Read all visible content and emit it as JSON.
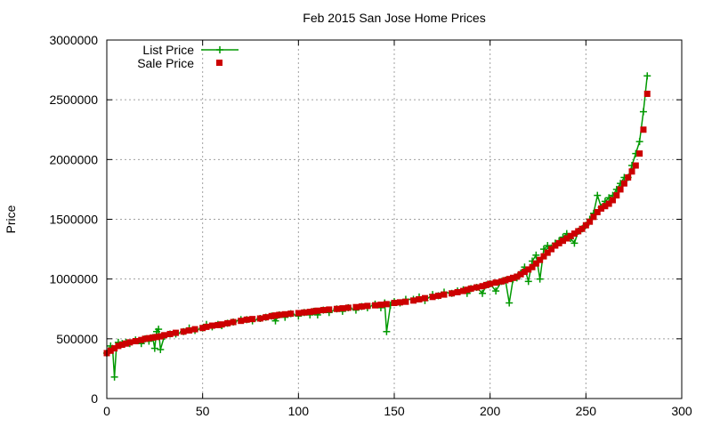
{
  "chart_data": {
    "type": "line",
    "title": "Feb 2015 San Jose Home Prices",
    "xlabel": "",
    "ylabel": "Price",
    "xlim": [
      0,
      300
    ],
    "ylim": [
      0,
      3000000
    ],
    "x_ticks": [
      0,
      50,
      100,
      150,
      200,
      250,
      300
    ],
    "y_ticks": [
      0,
      500000,
      1000000,
      1500000,
      2000000,
      2500000,
      3000000
    ],
    "grid": true,
    "legend_position": "top-left",
    "series": [
      {
        "name": "List Price",
        "style": "line-plus",
        "color": "#009900",
        "x": [
          0,
          1,
          2,
          3,
          4,
          5,
          6,
          7,
          8,
          10,
          12,
          15,
          18,
          20,
          22,
          24,
          25,
          26,
          27,
          28,
          30,
          33,
          36,
          40,
          43,
          46,
          50,
          52,
          55,
          58,
          60,
          63,
          66,
          70,
          73,
          76,
          80,
          83,
          86,
          88,
          90,
          93,
          96,
          100,
          103,
          106,
          108,
          110,
          113,
          116,
          120,
          123,
          126,
          130,
          133,
          136,
          140,
          143,
          145,
          146,
          148,
          150,
          153,
          156,
          160,
          163,
          166,
          170,
          173,
          176,
          180,
          183,
          186,
          188,
          190,
          193,
          196,
          198,
          200,
          203,
          206,
          208,
          210,
          212,
          214,
          216,
          218,
          220,
          222,
          224,
          226,
          228,
          230,
          232,
          234,
          236,
          238,
          240,
          242,
          244,
          246,
          248,
          250,
          252,
          254,
          256,
          258,
          260,
          262,
          264,
          266,
          268,
          270,
          272,
          274,
          276,
          278,
          280,
          282
        ],
        "values": [
          380000,
          400000,
          440000,
          420000,
          180000,
          430000,
          470000,
          450000,
          460000,
          470000,
          460000,
          490000,
          460000,
          500000,
          480000,
          510000,
          420000,
          560000,
          580000,
          410000,
          520000,
          540000,
          540000,
          560000,
          590000,
          570000,
          590000,
          620000,
          600000,
          620000,
          610000,
          630000,
          640000,
          660000,
          660000,
          650000,
          670000,
          680000,
          690000,
          650000,
          700000,
          680000,
          710000,
          690000,
          720000,
          700000,
          730000,
          700000,
          740000,
          720000,
          750000,
          730000,
          760000,
          740000,
          770000,
          760000,
          790000,
          760000,
          800000,
          560000,
          780000,
          810000,
          800000,
          830000,
          830000,
          850000,
          820000,
          870000,
          860000,
          890000,
          880000,
          900000,
          910000,
          880000,
          920000,
          930000,
          880000,
          950000,
          960000,
          900000,
          980000,
          990000,
          800000,
          1000000,
          1010000,
          1050000,
          1100000,
          980000,
          1150000,
          1200000,
          1000000,
          1250000,
          1280000,
          1260000,
          1300000,
          1320000,
          1350000,
          1380000,
          1340000,
          1300000,
          1400000,
          1420000,
          1450000,
          1500000,
          1550000,
          1700000,
          1600000,
          1650000,
          1680000,
          1700000,
          1750000,
          1800000,
          1850000,
          1850000,
          1950000,
          2050000,
          2150000,
          2400000,
          2700000
        ]
      },
      {
        "name": "Sale Price",
        "style": "points-square",
        "color": "#cc0000",
        "x": [
          0,
          2,
          4,
          6,
          8,
          10,
          12,
          15,
          18,
          20,
          22,
          24,
          26,
          28,
          30,
          33,
          36,
          40,
          43,
          46,
          50,
          52,
          55,
          58,
          60,
          63,
          66,
          70,
          73,
          76,
          80,
          83,
          86,
          88,
          90,
          93,
          96,
          100,
          103,
          106,
          108,
          110,
          113,
          116,
          120,
          123,
          126,
          130,
          133,
          136,
          140,
          143,
          146,
          150,
          153,
          156,
          160,
          163,
          166,
          170,
          173,
          176,
          180,
          183,
          186,
          188,
          190,
          193,
          196,
          198,
          200,
          203,
          206,
          208,
          210,
          212,
          214,
          216,
          218,
          220,
          222,
          224,
          226,
          228,
          230,
          232,
          234,
          236,
          238,
          240,
          242,
          244,
          246,
          248,
          250,
          252,
          254,
          256,
          258,
          260,
          262,
          264,
          266,
          268,
          270,
          272,
          274,
          276,
          278,
          280,
          282
        ],
        "values": [
          380000,
          400000,
          420000,
          440000,
          450000,
          460000,
          470000,
          480000,
          490000,
          500000,
          505000,
          510000,
          515000,
          520000,
          530000,
          540000,
          550000,
          560000,
          570000,
          580000,
          590000,
          600000,
          610000,
          615000,
          620000,
          630000,
          640000,
          650000,
          660000,
          665000,
          670000,
          680000,
          690000,
          695000,
          700000,
          705000,
          710000,
          715000,
          720000,
          725000,
          730000,
          735000,
          740000,
          745000,
          750000,
          755000,
          760000,
          765000,
          770000,
          775000,
          780000,
          785000,
          790000,
          800000,
          805000,
          810000,
          820000,
          830000,
          840000,
          850000,
          860000,
          870000,
          880000,
          890000,
          900000,
          910000,
          920000,
          930000,
          940000,
          950000,
          960000,
          970000,
          980000,
          990000,
          1000000,
          1010000,
          1020000,
          1040000,
          1060000,
          1080000,
          1100000,
          1130000,
          1160000,
          1190000,
          1220000,
          1250000,
          1280000,
          1300000,
          1320000,
          1340000,
          1360000,
          1380000,
          1400000,
          1420000,
          1450000,
          1480000,
          1520000,
          1560000,
          1590000,
          1610000,
          1630000,
          1660000,
          1700000,
          1750000,
          1800000,
          1850000,
          1900000,
          1950000,
          2050000,
          2250000,
          2550000
        ]
      }
    ]
  }
}
